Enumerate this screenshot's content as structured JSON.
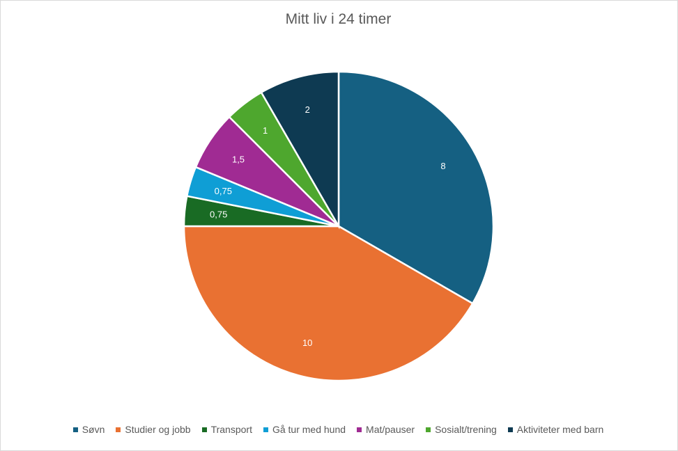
{
  "chart_data": {
    "type": "pie",
    "title": "Mitt liv i 24 timer",
    "categories": [
      "Søvn",
      "Studier og jobb",
      "Transport",
      "Gå tur med hund",
      "Mat/pauser",
      "Sosialt/trening",
      "Aktiviteter med barn"
    ],
    "values": [
      8,
      10,
      0.75,
      0.75,
      1.5,
      1,
      2
    ],
    "value_labels": [
      "8",
      "10",
      "0,75",
      "0,75",
      "1,5",
      "1",
      "2"
    ],
    "colors": [
      "#156082",
      "#E97132",
      "#196B24",
      "#0F9ED5",
      "#A02B93",
      "#4EA72E",
      "#0E3A52"
    ],
    "start_angle_deg": 0,
    "direction": "clockwise",
    "legend_position": "bottom"
  }
}
